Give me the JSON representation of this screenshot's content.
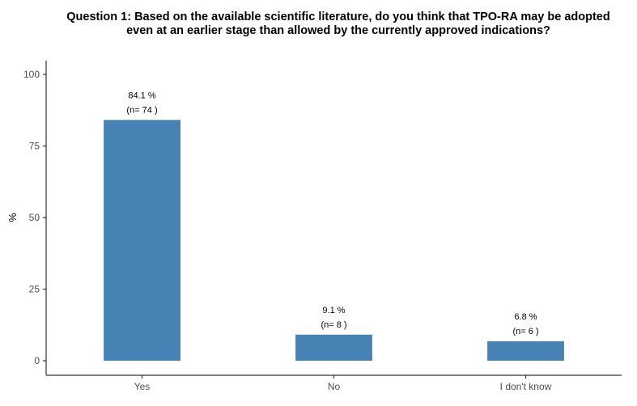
{
  "chart_data": {
    "type": "bar",
    "title_lines": [
      "Question 1: Based on the available scientific literature, do you think that TPO-RA may be adopted",
      "even at an earlier stage than allowed by the currently approved indications?"
    ],
    "xlabel": "",
    "ylabel": "%",
    "categories": [
      "Yes",
      "No",
      "I don't know"
    ],
    "values": [
      84.1,
      9.1,
      6.8
    ],
    "value_labels": [
      "84.1 %",
      "9.1 %",
      "6.8 %"
    ],
    "count_labels": [
      "(n= 74 )",
      "(n= 8 )",
      "(n= 6 )"
    ],
    "ylim": [
      0,
      100
    ],
    "yticks": [
      0,
      25,
      50,
      75,
      100
    ],
    "grid": false,
    "bar_color": "#4682b4"
  }
}
